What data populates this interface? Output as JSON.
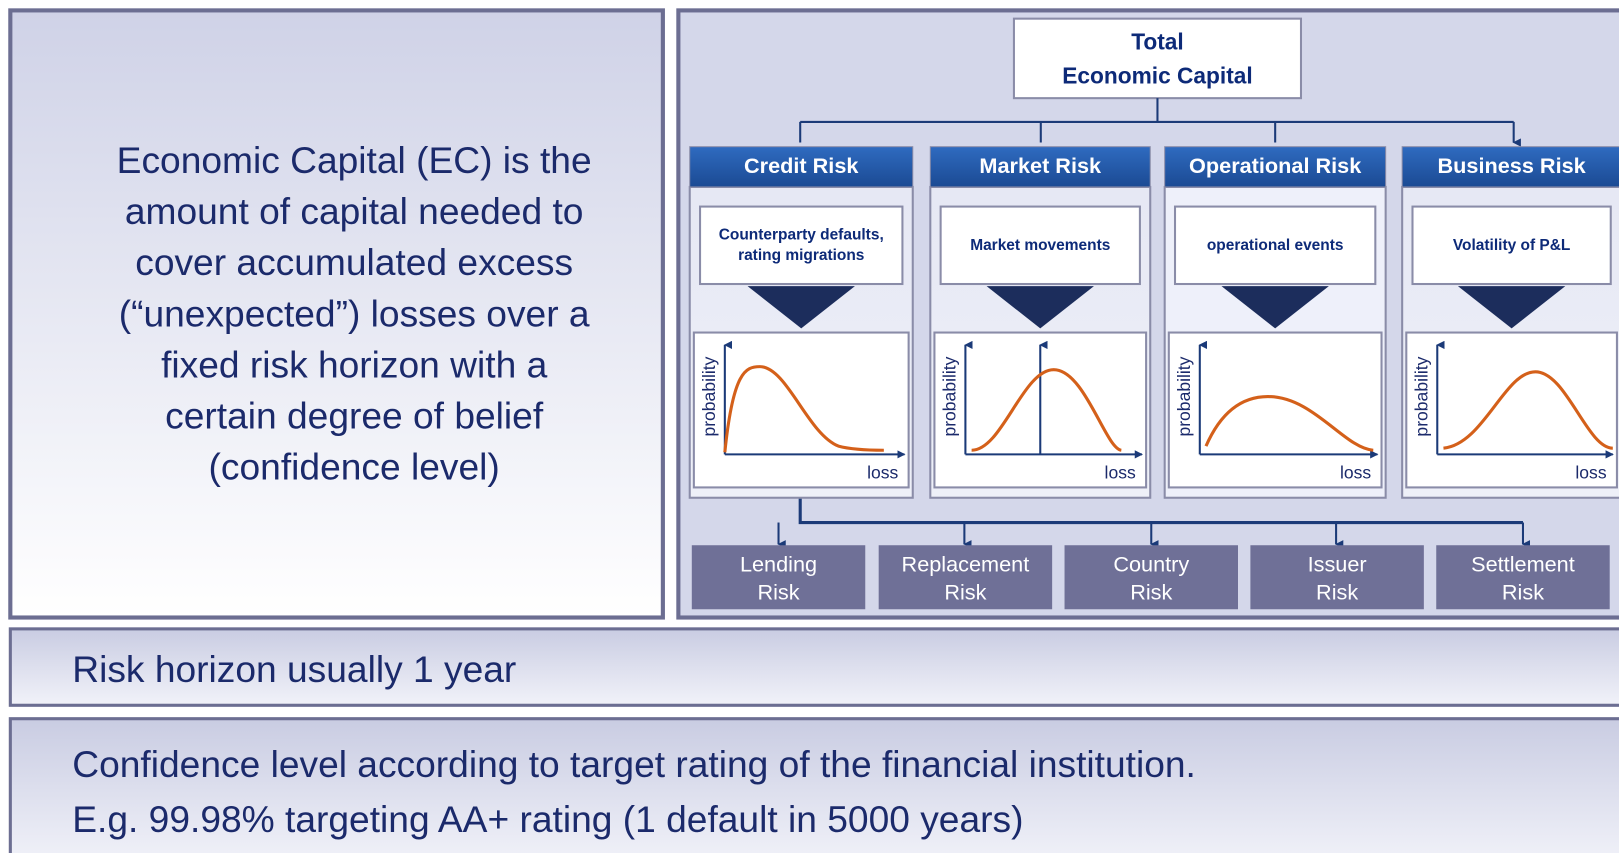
{
  "definition": [
    "Economic Capital (EC) is the",
    "amount of capital needed to",
    "cover accumulated excess",
    "(“unexpected”) losses over a",
    "fixed risk horizon with a",
    "certain degree of belief",
    "(confidence level)"
  ],
  "root": [
    "Total",
    "Economic Capital"
  ],
  "risks": [
    {
      "name": "Credit Risk",
      "driver": [
        "Counterparty defaults,",
        "rating migrations"
      ],
      "y_label": "probability",
      "x_label": "loss"
    },
    {
      "name": "Market Risk",
      "driver": [
        "Market movements"
      ],
      "y_label": "probability",
      "x_label": "loss"
    },
    {
      "name": "Operational Risk",
      "driver": [
        "operational events"
      ],
      "y_label": "probability",
      "x_label": "loss"
    },
    {
      "name": "Business Risk",
      "driver": [
        "Volatility of P&L"
      ],
      "y_label": "probability",
      "x_label": "loss"
    }
  ],
  "credit_subtypes": [
    [
      "Lending",
      "Risk"
    ],
    [
      "Replacement",
      "Risk"
    ],
    [
      "Country",
      "Risk"
    ],
    [
      "Issuer",
      "Risk"
    ],
    [
      "Settlement",
      "Risk"
    ]
  ],
  "notes": [
    [
      "Risk horizon usually 1 year"
    ],
    [
      "Confidence level according to target rating of the financial institution.",
      "E.g. 99.98% targeting AA+ rating (1 default in 5000 years)"
    ]
  ]
}
